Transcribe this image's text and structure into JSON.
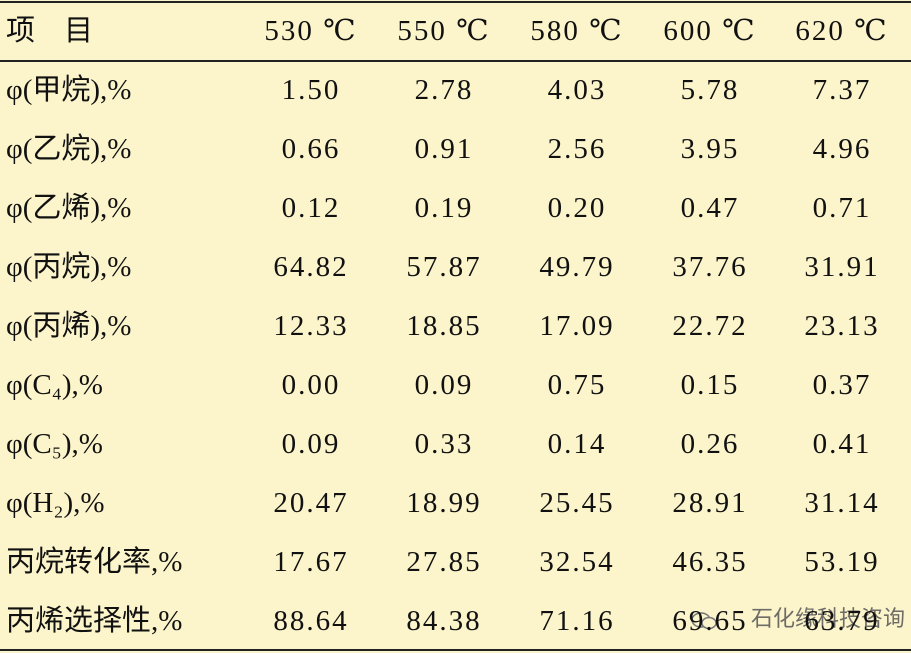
{
  "table": {
    "header": [
      "项　目",
      "530 ℃",
      "550 ℃",
      "580 ℃",
      "600 ℃",
      "620 ℃"
    ],
    "rows": [
      [
        "φ(甲烷),%",
        "1.50",
        "2.78",
        "4.03",
        "5.78",
        "7.37"
      ],
      [
        "φ(乙烷),%",
        "0.66",
        "0.91",
        "2.56",
        "3.95",
        "4.96"
      ],
      [
        "φ(乙烯),%",
        "0.12",
        "0.19",
        "0.20",
        "0.47",
        "0.71"
      ],
      [
        "φ(丙烷),%",
        "64.82",
        "57.87",
        "49.79",
        "37.76",
        "31.91"
      ],
      [
        "φ(丙烯),%",
        "12.33",
        "18.85",
        "17.09",
        "22.72",
        "23.13"
      ],
      [
        "φ(C₄),%",
        "0.00",
        "0.09",
        "0.75",
        "0.15",
        "0.37"
      ],
      [
        "φ(C₅),%",
        "0.09",
        "0.33",
        "0.14",
        "0.26",
        "0.41"
      ],
      [
        "φ(H₂),%",
        "20.47",
        "18.99",
        "25.45",
        "28.91",
        "31.14"
      ],
      [
        "丙烷转化率,%",
        "17.67",
        "27.85",
        "32.54",
        "46.35",
        "53.19"
      ],
      [
        "丙烯选择性,%",
        "88.64",
        "84.38",
        "71.16",
        "69.65",
        "63.79"
      ]
    ]
  },
  "watermark": "石化缘科技咨询"
}
